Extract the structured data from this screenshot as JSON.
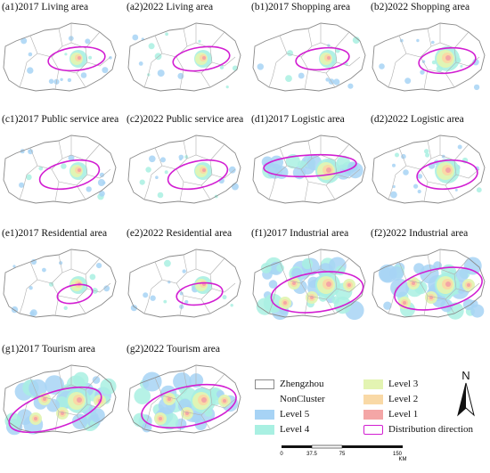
{
  "panels": [
    {
      "id": "a1",
      "label": "(a1)2017 Living area",
      "heat": "sparse",
      "level": 1
    },
    {
      "id": "a2",
      "label": "(a2)2022 Living area",
      "heat": "sparse",
      "level": 1
    },
    {
      "id": "b1",
      "label": "(b1)2017 Shopping area",
      "heat": "sparse",
      "level": 1
    },
    {
      "id": "b2",
      "label": "(b2)2022 Shopping area",
      "heat": "sparse",
      "level": 2
    },
    {
      "id": "c1",
      "label": "(c1)2017 Public service area",
      "heat": "sparse",
      "level": 1
    },
    {
      "id": "c2",
      "label": "(c2)2022 Public service area",
      "heat": "sparse",
      "level": 1
    },
    {
      "id": "d1",
      "label": "(d1)2017 Logistic area",
      "heat": "band",
      "level": 2
    },
    {
      "id": "d2",
      "label": "(d2)2022 Logistic area",
      "heat": "medium",
      "level": 2
    },
    {
      "id": "e1",
      "label": "(e1)2017 Residential area",
      "heat": "sparse",
      "level": 1
    },
    {
      "id": "e2",
      "label": "(e2)2022 Residential area",
      "heat": "sparse",
      "level": 1
    },
    {
      "id": "f1",
      "label": "(f1)2017 Industrial area",
      "heat": "dense",
      "level": 3
    },
    {
      "id": "f2",
      "label": "(f2)2022 Industrial area",
      "heat": "dense",
      "level": 3
    },
    {
      "id": "g1",
      "label": "(g1)2017 Tourism area",
      "heat": "dense",
      "level": 3
    },
    {
      "id": "g2",
      "label": "(g2)2022 Tourism area",
      "heat": "dense",
      "level": 3
    }
  ],
  "legend": {
    "items": [
      {
        "label": "Zhengzhou",
        "kind": "outline",
        "color": "#8a8a8a"
      },
      {
        "label": "NonCluster",
        "kind": "none",
        "color": "#ffffff"
      },
      {
        "label": "Level 5",
        "kind": "fill",
        "color": "#a7d3f5"
      },
      {
        "label": "Level 4",
        "kind": "fill",
        "color": "#a9f0e2"
      },
      {
        "label": "Level 3",
        "kind": "fill",
        "color": "#e3f4b2"
      },
      {
        "label": "Level 2",
        "kind": "fill",
        "color": "#f9d9a6"
      },
      {
        "label": "Level 1",
        "kind": "fill",
        "color": "#f4a6a6"
      },
      {
        "label": "Distribution direction",
        "kind": "ellipse",
        "color": "#d21ed2"
      }
    ]
  },
  "north": {
    "label": "N"
  },
  "scale": {
    "ticks": [
      "0",
      "37.5",
      "75",
      "150"
    ],
    "unit": "KM"
  },
  "colors": {
    "outline": "#8a8a8a",
    "ellipse": "#d21ed2",
    "lines": "#b0b0b0"
  }
}
